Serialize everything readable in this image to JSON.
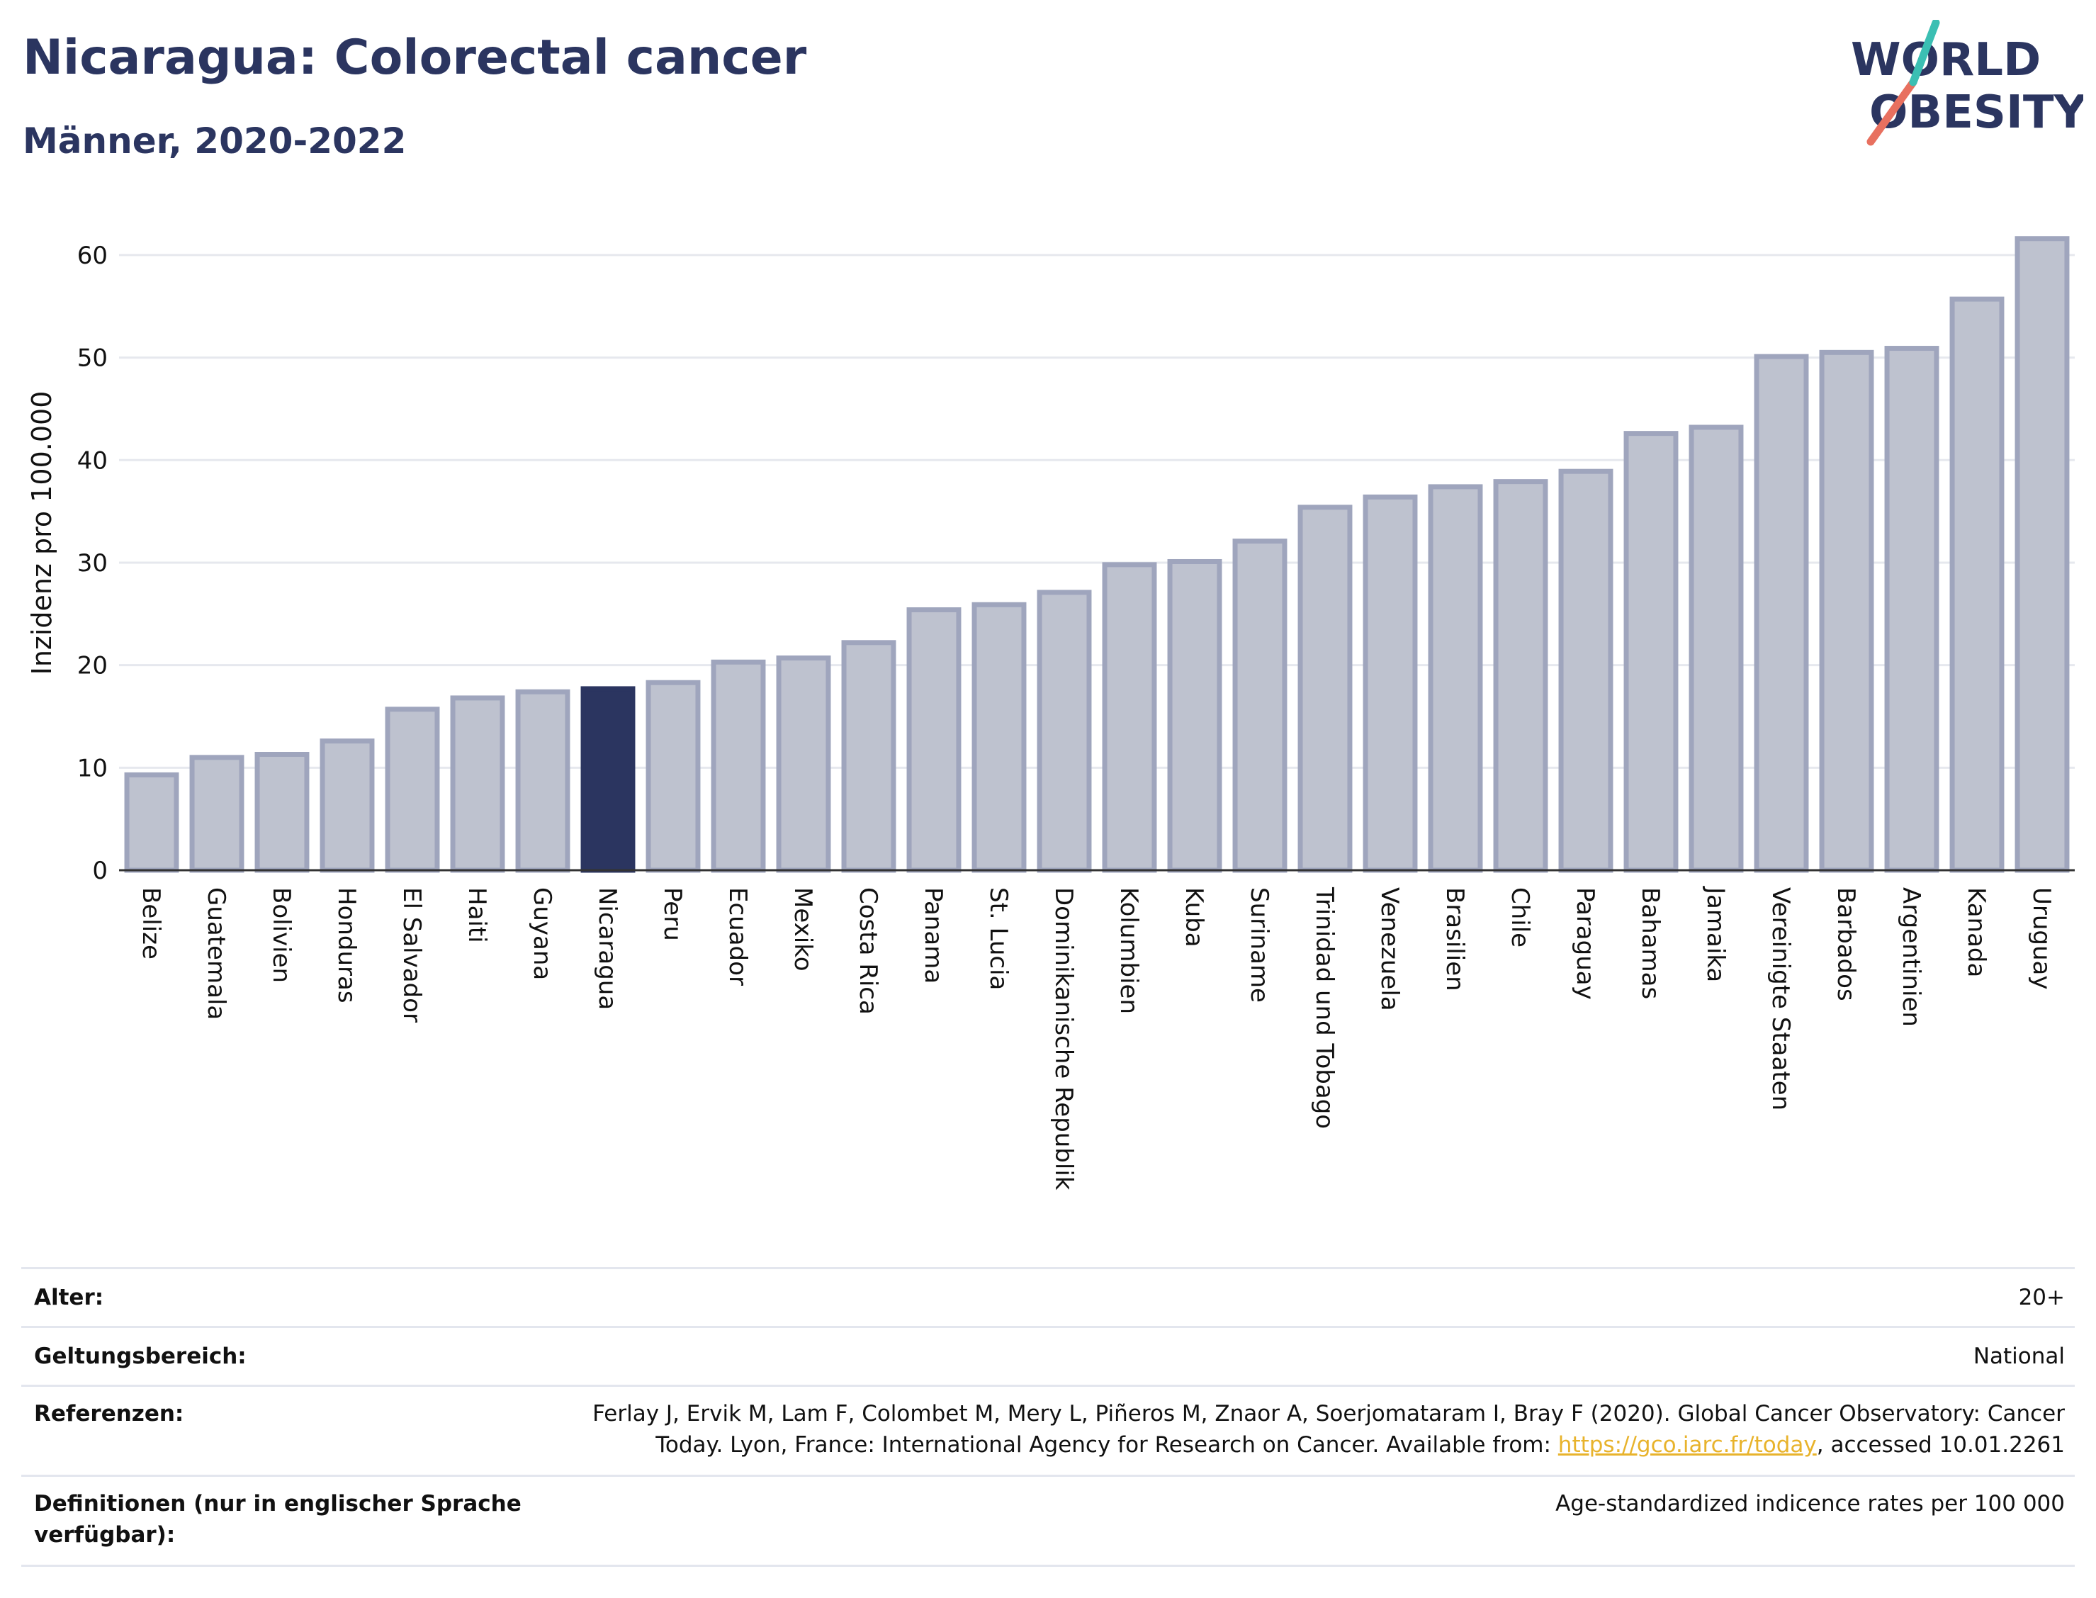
{
  "header": {
    "title": "Nicaragua: Colorectal cancer",
    "subtitle": "Männer, 2020-2022",
    "logo_line1": "WORLD",
    "logo_line2": "OBESITY"
  },
  "chart_data": {
    "type": "bar",
    "ylabel": "Inzidenz pro 100.000",
    "ylim": [
      0,
      64
    ],
    "yticks": [
      0,
      10,
      20,
      30,
      40,
      50,
      60
    ],
    "grid": true,
    "highlight": "Nicaragua",
    "colors": {
      "bar": "#bec2cf",
      "bar_edge": "#9fa5bd",
      "highlight": "#2b3560",
      "grid": "#e6e8ee",
      "axis": "#333333"
    },
    "categories": [
      "Belize",
      "Guatemala",
      "Bolivien",
      "Honduras",
      "El Salvador",
      "Haiti",
      "Guyana",
      "Nicaragua",
      "Peru",
      "Ecuador",
      "Mexiko",
      "Costa Rica",
      "Panama",
      "St. Lucia",
      "Dominikanische Republik",
      "Kolumbien",
      "Kuba",
      "Suriname",
      "Trinidad und Tobago",
      "Venezuela",
      "Brasilien",
      "Chile",
      "Paraguay",
      "Bahamas",
      "Jamaika",
      "Vereinigte Staaten",
      "Barbados",
      "Argentinien",
      "Kanada",
      "Uruguay"
    ],
    "values": [
      9.3,
      11.0,
      11.3,
      12.6,
      15.7,
      16.8,
      17.4,
      17.7,
      18.3,
      20.3,
      20.7,
      22.2,
      25.4,
      25.9,
      27.1,
      29.8,
      30.1,
      32.1,
      35.4,
      36.4,
      37.4,
      37.9,
      38.9,
      42.6,
      43.2,
      50.1,
      50.5,
      50.9,
      55.7,
      61.6
    ]
  },
  "meta": {
    "age_label": "Alter:",
    "age_value": "20+",
    "scope_label": "Geltungsbereich:",
    "scope_value": "National",
    "refs_label": "Referenzen:",
    "refs_text_1": "Ferlay J, Ervik M, Lam F, Colombet M, Mery L, Piñeros M, Znaor A, Soerjomataram I, Bray F (2020). Global Cancer Observatory: Cancer",
    "refs_text_2": "Today. Lyon, France: International Agency for Research on Cancer. Available from:",
    "refs_link": "https://gco.iarc.fr/today",
    "refs_text_3": ", accessed 10.01.2261",
    "defs_label": "Definitionen (nur in englischer Sprache verfügbar):",
    "defs_value": "Age-standardized indicence rates per 100 000"
  }
}
